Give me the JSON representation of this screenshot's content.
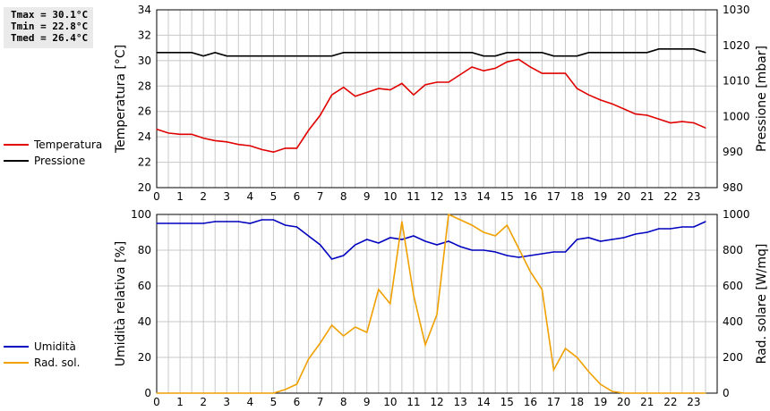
{
  "stats": {
    "tmax": "Tmax = 30.1°C",
    "tmin": "Tmin = 22.8°C",
    "tmed": "Tmed = 26.4°C"
  },
  "legend_top": [
    {
      "label": "Temperatura",
      "color": "#e00000"
    },
    {
      "label": "Pressione",
      "color": "#000000"
    }
  ],
  "legend_bottom": [
    {
      "label": "Umidità",
      "color": "#0000c0"
    },
    {
      "label": "Rad. sol.",
      "color": "#f0a000"
    }
  ],
  "chart_data": [
    {
      "type": "line",
      "ylabel": "Temperatura [°C]",
      "y2label": "Pressione [mbar]",
      "xlim": [
        0,
        24
      ],
      "ylim": [
        20,
        34
      ],
      "y2lim": [
        980,
        1030
      ],
      "xticks": [
        "0",
        "1",
        "2",
        "3",
        "4",
        "5",
        "6",
        "7",
        "8",
        "9",
        "10",
        "11",
        "12",
        "13",
        "14",
        "15",
        "16",
        "17",
        "18",
        "19",
        "20",
        "21",
        "22",
        "23"
      ],
      "yticks": [
        "20",
        "22",
        "24",
        "26",
        "28",
        "30",
        "32",
        "34"
      ],
      "y2ticks": [
        "980",
        "990",
        "1000",
        "1010",
        "1020",
        "1030"
      ],
      "grid": true,
      "series": [
        {
          "name": "Temperatura",
          "axis": "left",
          "color": "#e00000",
          "x": [
            0,
            0.5,
            1,
            1.5,
            2,
            2.5,
            3,
            3.5,
            4,
            4.5,
            5,
            5.5,
            6,
            6.5,
            7,
            7.5,
            8,
            8.5,
            9,
            9.5,
            10,
            10.5,
            11,
            11.5,
            12,
            12.5,
            13,
            13.5,
            14,
            14.5,
            15,
            15.5,
            16,
            16.5,
            17,
            17.5,
            18,
            18.5,
            19,
            19.5,
            20,
            20.5,
            21,
            21.5,
            22,
            22.5,
            23,
            23.5
          ],
          "y": [
            24.6,
            24.3,
            24.2,
            24.2,
            23.9,
            23.7,
            23.6,
            23.4,
            23.3,
            23.0,
            22.8,
            23.1,
            23.1,
            24.5,
            25.7,
            27.3,
            27.9,
            27.2,
            27.5,
            27.8,
            27.7,
            28.2,
            27.3,
            28.1,
            28.3,
            28.3,
            28.9,
            29.5,
            29.2,
            29.4,
            29.9,
            30.1,
            29.5,
            29.0,
            29.0,
            29.0,
            27.8,
            27.3,
            26.9,
            26.6,
            26.2,
            25.8,
            25.7,
            25.4,
            25.1,
            25.2,
            25.1,
            24.7
          ]
        },
        {
          "name": "Pressione",
          "axis": "right",
          "color": "#000000",
          "x": [
            0,
            0.5,
            1,
            1.5,
            2,
            2.5,
            3,
            3.5,
            4,
            4.5,
            5,
            5.5,
            6,
            6.5,
            7,
            7.5,
            8,
            8.5,
            9,
            9.5,
            10,
            10.5,
            11,
            11.5,
            12,
            12.5,
            13,
            13.5,
            14,
            14.5,
            15,
            15.5,
            16,
            16.5,
            17,
            17.5,
            18,
            18.5,
            19,
            19.5,
            20,
            20.5,
            21,
            21.5,
            22,
            22.5,
            23,
            23.5
          ],
          "y": [
            1018,
            1018,
            1018,
            1018,
            1017,
            1018,
            1017,
            1017,
            1017,
            1017,
            1017,
            1017,
            1017,
            1017,
            1017,
            1017,
            1018,
            1018,
            1018,
            1018,
            1018,
            1018,
            1018,
            1018,
            1018,
            1018,
            1018,
            1018,
            1017,
            1017,
            1018,
            1018,
            1018,
            1018,
            1017,
            1017,
            1017,
            1018,
            1018,
            1018,
            1018,
            1018,
            1018,
            1019,
            1019,
            1019,
            1019,
            1018
          ]
        }
      ]
    },
    {
      "type": "line",
      "ylabel": "Umidità relativa [%]",
      "y2label": "Rad. solare [W/mq]",
      "xlim": [
        0,
        24
      ],
      "ylim": [
        0,
        100
      ],
      "y2lim": [
        0,
        1000
      ],
      "xticks": [
        "0",
        "1",
        "2",
        "3",
        "4",
        "5",
        "6",
        "7",
        "8",
        "9",
        "10",
        "11",
        "12",
        "13",
        "14",
        "15",
        "16",
        "17",
        "18",
        "19",
        "20",
        "21",
        "22",
        "23"
      ],
      "yticks": [
        "0",
        "20",
        "40",
        "60",
        "80",
        "100"
      ],
      "y2ticks": [
        "0",
        "200",
        "400",
        "600",
        "800",
        "1000"
      ],
      "grid": true,
      "series": [
        {
          "name": "Umidità",
          "axis": "left",
          "color": "#0000c0",
          "x": [
            0,
            0.5,
            1,
            1.5,
            2,
            2.5,
            3,
            3.5,
            4,
            4.5,
            5,
            5.5,
            6,
            6.5,
            7,
            7.5,
            8,
            8.5,
            9,
            9.5,
            10,
            10.5,
            11,
            11.5,
            12,
            12.5,
            13,
            13.5,
            14,
            14.5,
            15,
            15.5,
            16,
            16.5,
            17,
            17.5,
            18,
            18.5,
            19,
            19.5,
            20,
            20.5,
            21,
            21.5,
            22,
            22.5,
            23,
            23.5
          ],
          "y": [
            95,
            95,
            95,
            95,
            95,
            96,
            96,
            96,
            95,
            97,
            97,
            94,
            93,
            88,
            83,
            75,
            77,
            83,
            86,
            84,
            87,
            86,
            88,
            85,
            83,
            85,
            82,
            80,
            80,
            79,
            77,
            76,
            77,
            78,
            79,
            79,
            86,
            87,
            85,
            86,
            87,
            89,
            90,
            92,
            92,
            93,
            93,
            96
          ]
        },
        {
          "name": "Rad. sol.",
          "axis": "right",
          "color": "#f0a000",
          "x": [
            0,
            0.5,
            1,
            1.5,
            2,
            2.5,
            3,
            3.5,
            4,
            4.5,
            5,
            5.5,
            6,
            6.5,
            7,
            7.5,
            8,
            8.5,
            9,
            9.5,
            10,
            10.5,
            11,
            11.5,
            12,
            12.5,
            13,
            13.5,
            14,
            14.5,
            15,
            15.5,
            16,
            16.5,
            17,
            17.5,
            18,
            18.5,
            19,
            19.5,
            20,
            20.5,
            21,
            21.5,
            22,
            22.5,
            23,
            23.5
          ],
          "y": [
            0,
            0,
            0,
            0,
            0,
            0,
            0,
            0,
            0,
            0,
            0,
            20,
            50,
            190,
            280,
            380,
            320,
            370,
            340,
            580,
            500,
            960,
            550,
            270,
            440,
            1000,
            970,
            940,
            900,
            880,
            940,
            810,
            680,
            580,
            130,
            250,
            200,
            120,
            50,
            10,
            0,
            0,
            0,
            0,
            0,
            0,
            0,
            0
          ]
        }
      ]
    }
  ]
}
